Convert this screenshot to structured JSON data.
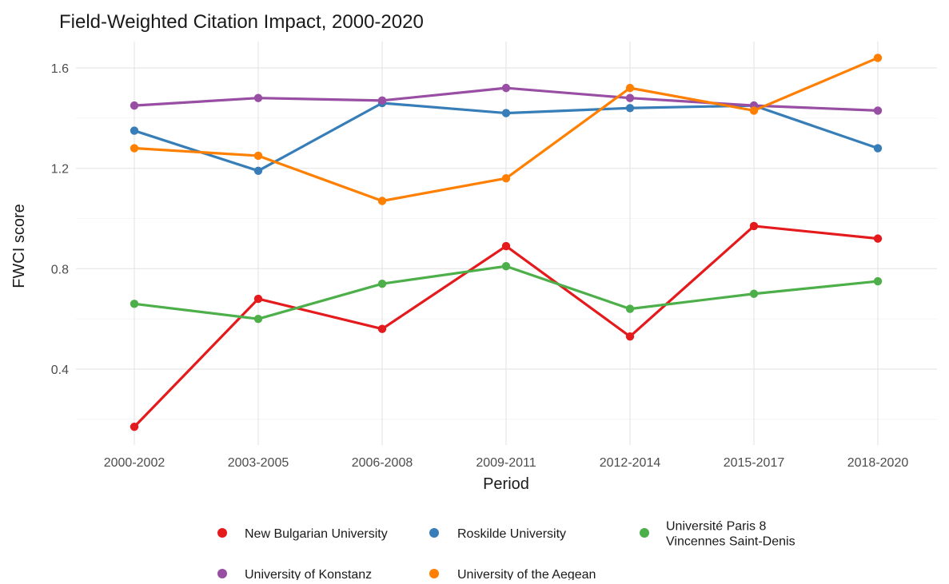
{
  "chart_data": {
    "type": "line",
    "title": "Field-Weighted Citation Impact, 2000-2020",
    "xlabel": "Period",
    "ylabel": "FWCI score",
    "categories": [
      "2000-2002",
      "2003-2005",
      "2006-2008",
      "2009-2011",
      "2012-2014",
      "2015-2017",
      "2018-2020"
    ],
    "ylim": [
      0.14,
      1.68
    ],
    "yticks": [
      "0.4",
      "0.8",
      "1.2",
      "1.6"
    ],
    "grid": true,
    "legend_position": "bottom",
    "series": [
      {
        "name": "New Bulgarian University",
        "color": "#e41a1c",
        "values": [
          0.17,
          0.68,
          0.56,
          0.89,
          0.53,
          0.97,
          0.92
        ]
      },
      {
        "name": "Roskilde University",
        "color": "#377eb8",
        "values": [
          1.35,
          1.19,
          1.46,
          1.42,
          1.44,
          1.45,
          1.28
        ]
      },
      {
        "name": "Université Paris 8\nVincennes Saint-Denis",
        "color": "#4daf4a",
        "values": [
          0.66,
          0.6,
          0.74,
          0.81,
          0.64,
          0.7,
          0.75
        ]
      },
      {
        "name": "University of Konstanz",
        "color": "#984ea3",
        "values": [
          1.45,
          1.48,
          1.47,
          1.52,
          1.48,
          1.45,
          1.43
        ]
      },
      {
        "name": "University of the Aegean",
        "color": "#ff7f00",
        "values": [
          1.28,
          1.25,
          1.07,
          1.16,
          1.52,
          1.43,
          1.64
        ]
      }
    ]
  }
}
